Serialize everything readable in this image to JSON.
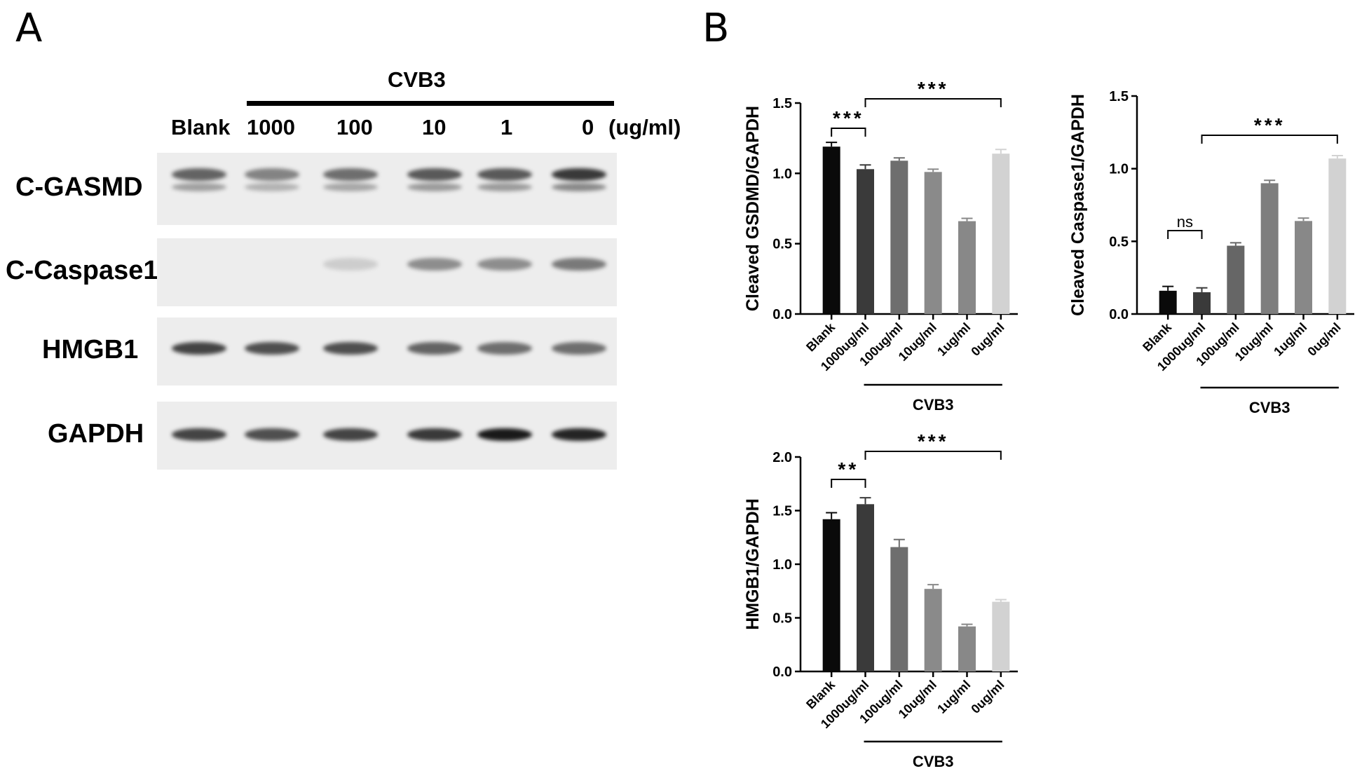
{
  "panels": {
    "a": "A",
    "b": "B"
  },
  "blot": {
    "group_label": "CVB3",
    "lanes": [
      "Blank",
      "1000",
      "100",
      "10",
      "1",
      "0"
    ],
    "unit": "(ug/ml)",
    "rows": [
      {
        "label": "C-GASMD",
        "intensity": [
          0.65,
          0.5,
          0.6,
          0.7,
          0.7,
          0.85
        ]
      },
      {
        "label": "C-Caspase1",
        "intensity": [
          0.0,
          0.0,
          0.15,
          0.45,
          0.45,
          0.55
        ]
      },
      {
        "label": "HMGB1",
        "intensity": [
          0.8,
          0.75,
          0.75,
          0.65,
          0.6,
          0.6
        ]
      },
      {
        "label": "GAPDH",
        "intensity": [
          0.8,
          0.75,
          0.8,
          0.85,
          1.0,
          0.95
        ]
      }
    ]
  },
  "chart_data": [
    {
      "type": "bar",
      "ylabel": "Cleaved GSDMD/GAPDH",
      "group_label": "CVB3",
      "categories": [
        "Blank",
        "1000ug/ml",
        "100ug/ml",
        "10ug/ml",
        "1ug/ml",
        "0ug/ml"
      ],
      "values": [
        1.19,
        1.03,
        1.09,
        1.01,
        0.66,
        1.14
      ],
      "errors": [
        0.03,
        0.03,
        0.02,
        0.02,
        0.02,
        0.03
      ],
      "colors": [
        "#0a0a0a",
        "#3a3a3a",
        "#6e6e6e",
        "#8a8a8a",
        "#888888",
        "#d2d2d2"
      ],
      "ylim": [
        0,
        1.5
      ],
      "yticks": [
        "0.0",
        "0.5",
        "1.0",
        "1.5"
      ],
      "significance": [
        {
          "from": 0,
          "to": 1,
          "label": "***"
        },
        {
          "from": 1,
          "to": 5,
          "label": "***"
        }
      ]
    },
    {
      "type": "bar",
      "ylabel": "Cleaved Caspase1/GAPDH",
      "group_label": "CVB3",
      "categories": [
        "Blank",
        "1000ug/ml",
        "100ug/ml",
        "10ug/ml",
        "1ug/ml",
        "0ug/ml"
      ],
      "values": [
        0.16,
        0.15,
        0.47,
        0.9,
        0.64,
        1.07
      ],
      "errors": [
        0.03,
        0.03,
        0.02,
        0.02,
        0.02,
        0.02
      ],
      "colors": [
        "#0a0a0a",
        "#3a3a3a",
        "#666666",
        "#7e7e7e",
        "#888888",
        "#d2d2d2"
      ],
      "ylim": [
        0,
        1.5
      ],
      "yticks": [
        "0.0",
        "0.5",
        "1.0",
        "1.5"
      ],
      "significance": [
        {
          "from": 0,
          "to": 1,
          "label": "ns"
        },
        {
          "from": 1,
          "to": 5,
          "label": "***"
        }
      ]
    },
    {
      "type": "bar",
      "ylabel": "HMGB1/GAPDH",
      "group_label": "CVB3",
      "categories": [
        "Blank",
        "1000ug/ml",
        "100ug/ml",
        "10ug/ml",
        "1ug/ml",
        "0ug/ml"
      ],
      "values": [
        1.42,
        1.56,
        1.16,
        0.77,
        0.42,
        0.65
      ],
      "errors": [
        0.06,
        0.06,
        0.07,
        0.04,
        0.02,
        0.02
      ],
      "colors": [
        "#0a0a0a",
        "#3a3a3a",
        "#6e6e6e",
        "#8a8a8a",
        "#888888",
        "#d2d2d2"
      ],
      "ylim": [
        0,
        2.0
      ],
      "yticks": [
        "0.0",
        "0.5",
        "1.0",
        "1.5",
        "2.0"
      ],
      "significance": [
        {
          "from": 0,
          "to": 1,
          "label": "**"
        },
        {
          "from": 1,
          "to": 5,
          "label": "***"
        }
      ]
    }
  ]
}
